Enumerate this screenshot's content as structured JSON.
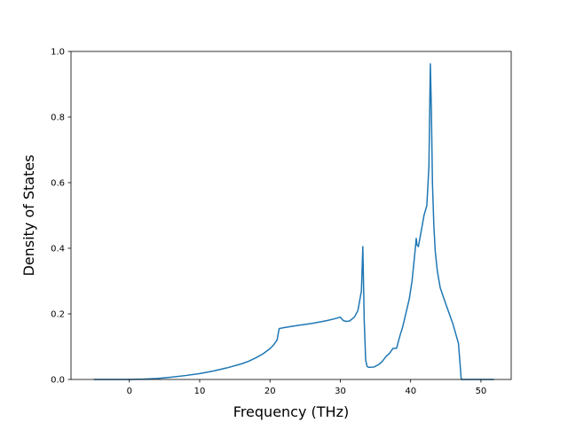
{
  "chart_data": {
    "type": "line",
    "xlabel": "Frequency (THz)",
    "ylabel": "Density of States",
    "xlim": [
      -8.3,
      54.3
    ],
    "ylim": [
      0.0,
      1.0
    ],
    "xticks": [
      0,
      10,
      20,
      30,
      40,
      50
    ],
    "yticks": [
      0.0,
      0.2,
      0.4,
      0.6,
      0.8,
      1.0
    ],
    "xtick_labels": [
      "0",
      "10",
      "20",
      "30",
      "40",
      "50"
    ],
    "ytick_labels": [
      "0.0",
      "0.2",
      "0.4",
      "0.6",
      "0.8",
      "1.0"
    ],
    "grid": false,
    "legend": "none",
    "series_color": "#1f77b4",
    "series": [
      {
        "x": [
          -5.0,
          -2.0,
          0.0,
          2.0,
          4.0,
          6.0,
          8.0,
          10.0,
          12.0,
          14.0,
          16.0,
          17.0,
          18.0,
          19.0,
          20.0,
          20.5,
          21.0,
          21.3,
          22.0,
          24.0,
          26.0,
          28.0,
          29.0,
          30.0,
          30.4,
          30.8,
          31.3,
          32.0,
          32.5,
          33.0,
          33.2,
          33.4,
          33.6,
          33.8,
          34.0,
          34.3,
          34.8,
          35.5,
          36.0,
          36.5,
          37.0,
          37.5,
          38.0,
          38.5,
          38.8,
          39.2,
          39.8,
          40.2,
          40.6,
          40.8,
          40.9,
          41.1,
          41.4,
          41.9,
          42.3,
          42.6,
          42.8,
          42.95,
          43.1,
          43.3,
          43.5,
          43.8,
          44.2,
          45.0,
          46.0,
          46.8,
          47.2,
          48.0,
          50.0,
          51.8
        ],
        "y": [
          0.0,
          0.0,
          0.0,
          0.001,
          0.003,
          0.007,
          0.012,
          0.018,
          0.026,
          0.036,
          0.048,
          0.056,
          0.066,
          0.078,
          0.094,
          0.105,
          0.12,
          0.155,
          0.158,
          0.165,
          0.171,
          0.179,
          0.184,
          0.19,
          0.18,
          0.177,
          0.178,
          0.19,
          0.21,
          0.27,
          0.405,
          0.18,
          0.06,
          0.04,
          0.037,
          0.037,
          0.038,
          0.046,
          0.056,
          0.07,
          0.08,
          0.095,
          0.095,
          0.135,
          0.155,
          0.19,
          0.245,
          0.3,
          0.385,
          0.43,
          0.41,
          0.405,
          0.44,
          0.5,
          0.53,
          0.65,
          0.962,
          0.82,
          0.6,
          0.47,
          0.39,
          0.33,
          0.28,
          0.23,
          0.17,
          0.11,
          0.0,
          0.0,
          0.0,
          0.0
        ]
      }
    ]
  }
}
